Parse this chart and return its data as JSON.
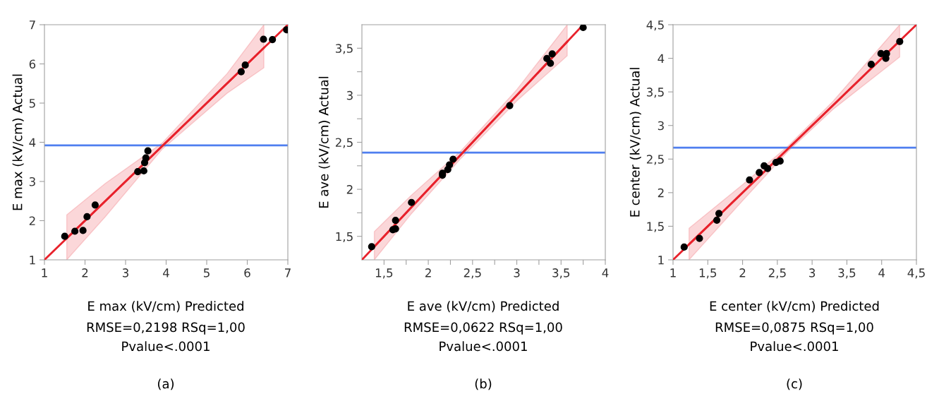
{
  "chart_data": [
    {
      "type": "scatter",
      "xlabel": "E max (kV/cm) Predicted",
      "ylabel": "E max (kV/cm) Actual",
      "annotations": [
        "RMSE=0,2198 RSq=1,00",
        "Pvalue<.0001",
        "(a)"
      ],
      "xlim": [
        1,
        7
      ],
      "ylim": [
        1,
        7
      ],
      "xticks": [
        1,
        2,
        3,
        4,
        5,
        6,
        7
      ],
      "yticks": [
        1,
        2,
        3,
        4,
        5,
        6,
        7
      ],
      "ref_lines": [
        {
          "axis": "y",
          "value": 3.92,
          "color": "#4f7ff0"
        }
      ],
      "series": [
        {
          "type": "line",
          "color": "#e8222c",
          "x": [
            1,
            7
          ],
          "values": [
            1,
            7
          ]
        },
        {
          "type": "line",
          "color": "#e8222c",
          "x": [
            1.55,
            2.5,
            3.9,
            5.5,
            6.41
          ],
          "values": [
            1.55,
            2.5,
            3.9,
            5.5,
            6.41
          ],
          "upper": [
            2.15,
            2.95,
            3.98,
            5.75,
            7.0
          ],
          "lower": [
            1.0,
            2.1,
            3.82,
            5.25,
            5.9
          ]
        },
        {
          "type": "scatter",
          "color": "#000000",
          "marker": "circle",
          "x": [
            1.5,
            1.75,
            1.95,
            2.05,
            2.25,
            3.3,
            3.45,
            3.47,
            3.5,
            3.55,
            5.85,
            5.95,
            6.4,
            6.62,
            6.97
          ],
          "values": [
            1.6,
            1.73,
            1.75,
            2.1,
            2.4,
            3.25,
            3.27,
            3.48,
            3.6,
            3.78,
            5.8,
            5.97,
            6.63,
            6.62,
            6.87
          ]
        }
      ]
    },
    {
      "type": "scatter",
      "xlabel": "E ave (kV/cm) Predicted",
      "ylabel": "E ave (kV/cm) Actual",
      "annotations": [
        "RMSE=0,0622 RSq=1,00",
        "Pvalue<.0001",
        "(b)"
      ],
      "xlim": [
        1.25,
        4
      ],
      "ylim": [
        1.25,
        3.75
      ],
      "xticks": [
        {
          "value": 1.5,
          "label": "1,5"
        },
        {
          "value": 1.75,
          "label": null
        },
        {
          "value": 2,
          "label": "2"
        },
        {
          "value": 2.25,
          "label": null
        },
        {
          "value": 2.5,
          "label": "2,5"
        },
        {
          "value": 2.75,
          "label": null
        },
        {
          "value": 3,
          "label": "3"
        },
        {
          "value": 3.25,
          "label": null
        },
        {
          "value": 3.5,
          "label": "3,5"
        },
        {
          "value": 3.75,
          "label": null
        },
        {
          "value": 4,
          "label": "4"
        }
      ],
      "yticks": [
        {
          "value": 1.5,
          "label": "1,5"
        },
        {
          "value": 1.75,
          "label": null
        },
        {
          "value": 2,
          "label": "2"
        },
        {
          "value": 2.25,
          "label": null
        },
        {
          "value": 2.5,
          "label": "2,5"
        },
        {
          "value": 2.75,
          "label": null
        },
        {
          "value": 3,
          "label": "3"
        },
        {
          "value": 3.25,
          "label": null
        },
        {
          "value": 3.5,
          "label": "3,5"
        }
      ],
      "ref_lines": [
        {
          "axis": "y",
          "value": 2.39,
          "color": "#4f7ff0"
        }
      ],
      "series": [
        {
          "type": "line",
          "color": "#e8222c",
          "x": [
            1.25,
            3.75
          ],
          "values": [
            1.25,
            3.75
          ]
        },
        {
          "type": "line",
          "color": "#e8222c",
          "x": [
            1.39,
            1.8,
            2.37,
            3.0,
            3.57
          ],
          "values": [
            1.39,
            1.8,
            2.37,
            3.0,
            3.57
          ],
          "upper": [
            1.55,
            1.93,
            2.41,
            3.06,
            3.75
          ],
          "lower": [
            1.25,
            1.73,
            2.33,
            2.94,
            3.42
          ]
        },
        {
          "type": "scatter",
          "color": "#000000",
          "marker": "circle",
          "x": [
            1.36,
            1.6,
            1.63,
            1.63,
            1.81,
            2.16,
            2.16,
            2.22,
            2.24,
            2.28,
            2.92,
            3.34,
            3.38,
            3.4,
            3.75
          ],
          "values": [
            1.39,
            1.57,
            1.58,
            1.67,
            1.86,
            2.15,
            2.17,
            2.21,
            2.26,
            2.32,
            2.89,
            3.39,
            3.34,
            3.44,
            3.72
          ]
        }
      ]
    },
    {
      "type": "scatter",
      "xlabel": "E center (kV/cm) Predicted",
      "ylabel": "E center (kV/cm) Actual",
      "annotations": [
        "RMSE=0,0875 RSq=1,00",
        "Pvalue<.0001",
        "(c)"
      ],
      "xlim": [
        1,
        4.5
      ],
      "ylim": [
        1,
        4.5
      ],
      "xticks": [
        1,
        {
          "value": 1.5,
          "label": "1,5"
        },
        2,
        {
          "value": 2.5,
          "label": "2,5"
        },
        3,
        {
          "value": 3.5,
          "label": "3,5"
        },
        4,
        {
          "value": 4.5,
          "label": "4,5"
        }
      ],
      "yticks": [
        1,
        {
          "value": 1.5,
          "label": "1,5"
        },
        2,
        {
          "value": 2.5,
          "label": "2,5"
        },
        3,
        {
          "value": 3.5,
          "label": "3,5"
        },
        4,
        {
          "value": 4.5,
          "label": "4,5"
        }
      ],
      "ref_lines": [
        {
          "axis": "y",
          "value": 2.67,
          "color": "#4f7ff0"
        }
      ],
      "series": [
        {
          "type": "line",
          "color": "#e8222c",
          "x": [
            1,
            4.5
          ],
          "values": [
            1,
            4.5
          ]
        },
        {
          "type": "line",
          "color": "#e8222c",
          "x": [
            1.23,
            2,
            2.65,
            3.3,
            4.26
          ],
          "values": [
            1.23,
            2,
            2.65,
            3.3,
            4.26
          ],
          "upper": [
            1.47,
            2.12,
            2.69,
            3.36,
            4.5
          ],
          "lower": [
            1.0,
            1.88,
            2.61,
            3.24,
            4.02
          ]
        },
        {
          "type": "scatter",
          "color": "#000000",
          "marker": "circle",
          "x": [
            1.16,
            1.38,
            1.63,
            1.66,
            2.1,
            2.24,
            2.31,
            2.36,
            2.48,
            2.54,
            3.85,
            3.99,
            4.06,
            4.07,
            4.26
          ],
          "values": [
            1.19,
            1.32,
            1.59,
            1.69,
            2.19,
            2.3,
            2.4,
            2.36,
            2.45,
            2.47,
            3.91,
            4.07,
            4.0,
            4.07,
            4.25
          ]
        }
      ]
    }
  ]
}
